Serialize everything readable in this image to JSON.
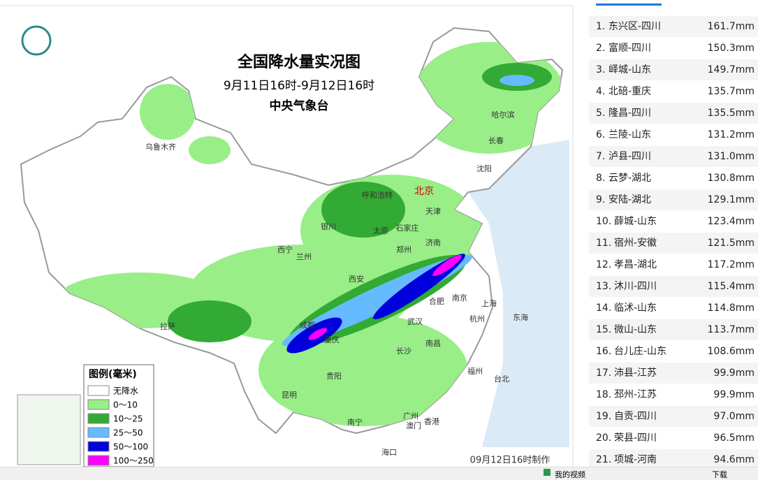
{
  "map": {
    "title": "全国降水量实况图",
    "period": "9月11日16时-9月12日16时",
    "agency": "中央气象台",
    "footer": "09月12日16时制作",
    "cities": [
      "乌鲁木齐",
      "呼和浩特",
      "北京",
      "天津",
      "银川",
      "太原",
      "石家庄",
      "济南",
      "西宁",
      "兰州",
      "郑州",
      "西安",
      "南京",
      "合肥",
      "上海",
      "杭州",
      "武汉",
      "成都",
      "重庆",
      "拉萨",
      "长沙",
      "南昌",
      "贵阳",
      "福州",
      "台北",
      "昆明",
      "南宁",
      "广州",
      "澳门",
      "香港",
      "海口",
      "哈尔滨",
      "长春",
      "沈阳",
      "东海"
    ],
    "legend": {
      "title": "图例(毫米)",
      "items": [
        "无降水",
        "0～10",
        "10～25",
        "25～50",
        "50～100",
        "100～250"
      ]
    }
  },
  "ranking": [
    {
      "rank": "1.",
      "place": "东兴区-四川",
      "amount": "161.7mm"
    },
    {
      "rank": "2.",
      "place": "富顺-四川",
      "amount": "150.3mm"
    },
    {
      "rank": "3.",
      "place": "峄城-山东",
      "amount": "149.7mm"
    },
    {
      "rank": "4.",
      "place": "北碚-重庆",
      "amount": "135.7mm"
    },
    {
      "rank": "5.",
      "place": "隆昌-四川",
      "amount": "135.5mm"
    },
    {
      "rank": "6.",
      "place": "兰陵-山东",
      "amount": "131.2mm"
    },
    {
      "rank": "7.",
      "place": "泸县-四川",
      "amount": "131.0mm"
    },
    {
      "rank": "8.",
      "place": "云梦-湖北",
      "amount": "130.8mm"
    },
    {
      "rank": "9.",
      "place": "安陆-湖北",
      "amount": "129.1mm"
    },
    {
      "rank": "10.",
      "place": "薛城-山东",
      "amount": "123.4mm"
    },
    {
      "rank": "11.",
      "place": "宿州-安徽",
      "amount": "121.5mm"
    },
    {
      "rank": "12.",
      "place": "孝昌-湖北",
      "amount": "117.2mm"
    },
    {
      "rank": "13.",
      "place": "沐川-四川",
      "amount": "115.4mm"
    },
    {
      "rank": "14.",
      "place": "临沭-山东",
      "amount": "114.8mm"
    },
    {
      "rank": "15.",
      "place": "微山-山东",
      "amount": "113.7mm"
    },
    {
      "rank": "16.",
      "place": "台儿庄-山东",
      "amount": "108.6mm"
    },
    {
      "rank": "17.",
      "place": "沛县-江苏",
      "amount": "99.9mm"
    },
    {
      "rank": "18.",
      "place": "邳州-江苏",
      "amount": "99.9mm"
    },
    {
      "rank": "19.",
      "place": "自贡-四川",
      "amount": "97.0mm"
    },
    {
      "rank": "20.",
      "place": "荣县-四川",
      "amount": "96.5mm"
    },
    {
      "rank": "21.",
      "place": "项城-河南",
      "amount": "94.6mm"
    }
  ],
  "toolbar": {
    "videos": "我的视频",
    "download": "下载"
  }
}
